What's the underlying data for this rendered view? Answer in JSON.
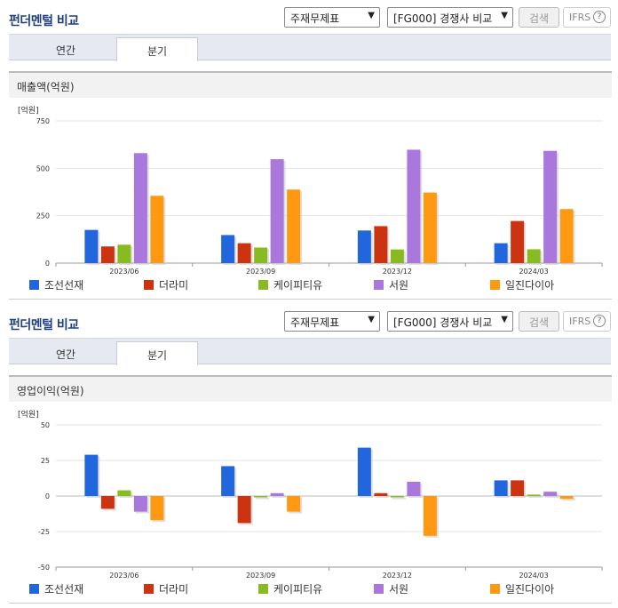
{
  "panels": [
    {
      "title": "펀더멘털 비교",
      "select_statement": "주재무제표",
      "select_compare": "[FG000] 경쟁사 비교",
      "search_label": "검색",
      "ifrs_label": "IFRS",
      "ifrs_help": "?",
      "tabs": [
        "연간",
        "분기"
      ],
      "active_tab": 1,
      "chart_title": "매출액(억원)",
      "unit": "[억원]"
    },
    {
      "title": "펀더멘털 비교",
      "select_statement": "주재무제표",
      "select_compare": "[FG000] 경쟁사 비교",
      "search_label": "검색",
      "ifrs_label": "IFRS",
      "ifrs_help": "?",
      "tabs": [
        "연간",
        "분기"
      ],
      "active_tab": 1,
      "chart_title": "영업이익(억원)",
      "unit": "[억원]"
    }
  ],
  "chart_data": [
    {
      "type": "bar",
      "title": "매출액(억원)",
      "ylabel": "[억원]",
      "categories": [
        "2023/06",
        "2023/09",
        "2023/12",
        "2024/03"
      ],
      "ylim": [
        0,
        750
      ],
      "yticks": [
        0,
        250,
        500,
        750
      ],
      "grid": true,
      "legend": "bottom",
      "series": [
        {
          "name": "조선선재",
          "color": "#2266dd",
          "values": [
            175,
            148,
            172,
            105
          ]
        },
        {
          "name": "더라미",
          "color": "#cc3311",
          "values": [
            88,
            105,
            195,
            222
          ]
        },
        {
          "name": "케이피티유",
          "color": "#88bb22",
          "values": [
            97,
            82,
            72,
            73
          ]
        },
        {
          "name": "서원",
          "color": "#aa77dd",
          "values": [
            580,
            548,
            598,
            592
          ]
        },
        {
          "name": "일진다이아",
          "color": "#ff9911",
          "values": [
            355,
            388,
            372,
            285
          ]
        }
      ]
    },
    {
      "type": "bar",
      "title": "영업이익(억원)",
      "ylabel": "[억원]",
      "categories": [
        "2023/06",
        "2023/09",
        "2023/12",
        "2024/03"
      ],
      "ylim": [
        -50,
        50
      ],
      "yticks": [
        -50,
        -25,
        0,
        25,
        50
      ],
      "grid": true,
      "legend": "bottom",
      "series": [
        {
          "name": "조선선재",
          "color": "#2266dd",
          "values": [
            29,
            21,
            34,
            11
          ]
        },
        {
          "name": "더라미",
          "color": "#cc3311",
          "values": [
            -9,
            -19,
            2,
            11
          ]
        },
        {
          "name": "케이피티유",
          "color": "#88bb22",
          "values": [
            4,
            -1,
            -1,
            1
          ]
        },
        {
          "name": "서원",
          "color": "#aa77dd",
          "values": [
            -11,
            2,
            10,
            3
          ]
        },
        {
          "name": "일진다이아",
          "color": "#ff9911",
          "values": [
            -17,
            -11,
            -28,
            -2
          ]
        }
      ]
    }
  ]
}
